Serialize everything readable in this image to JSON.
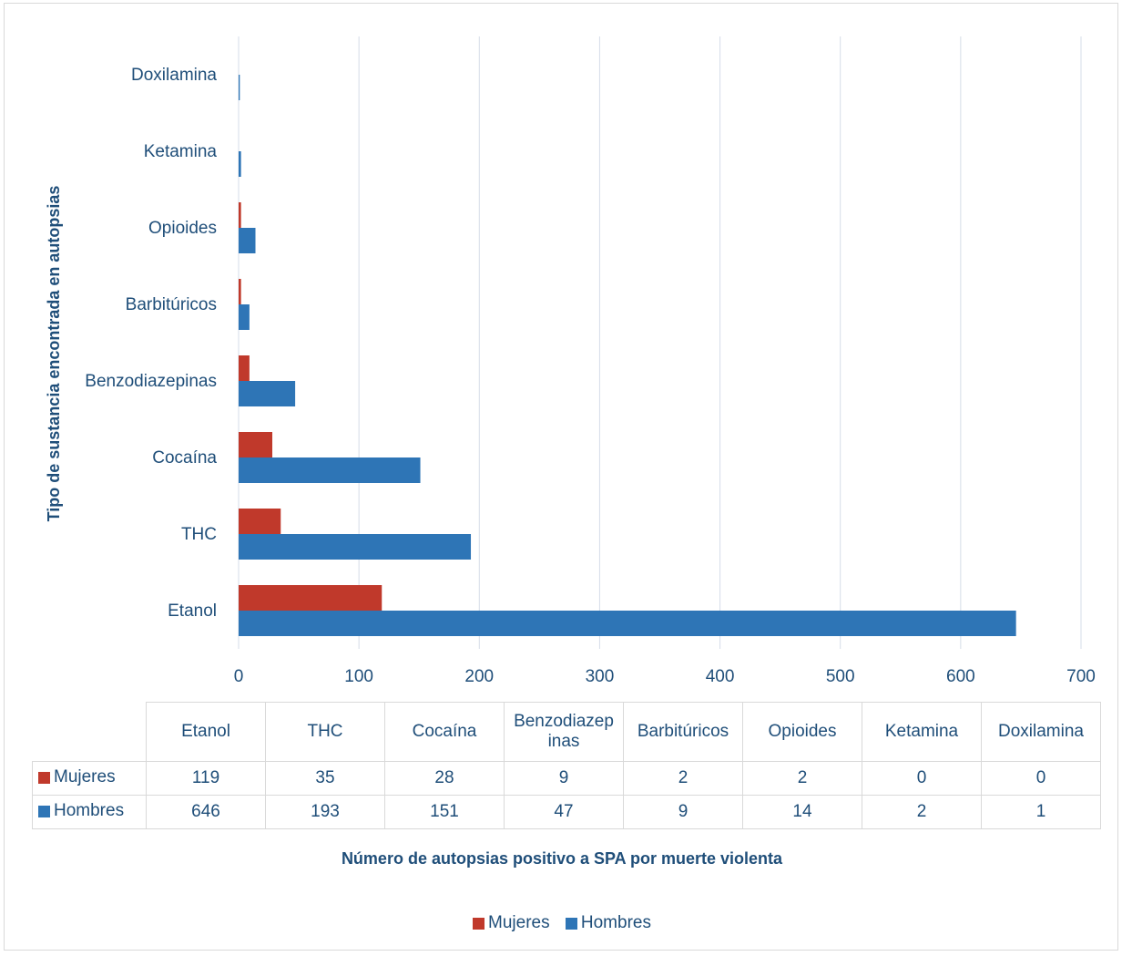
{
  "chart_data": {
    "type": "bar",
    "orientation": "horizontal",
    "categories": [
      "Etanol",
      "THC",
      "Cocaína",
      "Benzodiazepinas",
      "Barbitúricos",
      "Opioides",
      "Ketamina",
      "Doxilamina"
    ],
    "table_headers": [
      "Etanol",
      "THC",
      "Cocaína",
      "Benzodiazep inas",
      "Barbitúricos",
      "Opioides",
      "Ketamina",
      "Doxilamina"
    ],
    "series": [
      {
        "name": "Mujeres",
        "color": "#c0392b",
        "values": [
          119,
          35,
          28,
          9,
          2,
          2,
          0,
          0
        ]
      },
      {
        "name": "Hombres",
        "color": "#2e75b6",
        "values": [
          646,
          193,
          151,
          47,
          9,
          14,
          2,
          1
        ]
      }
    ],
    "xlabel": "Número de autopsias positivo a SPA por muerte violenta",
    "ylabel": "Tipo de sustancia encontrada en autopsias",
    "xlim": [
      0,
      700
    ],
    "xticks": [
      0,
      100,
      200,
      300,
      400,
      500,
      600,
      700
    ],
    "grid": true,
    "legend_position": "bottom",
    "data_table": true
  }
}
